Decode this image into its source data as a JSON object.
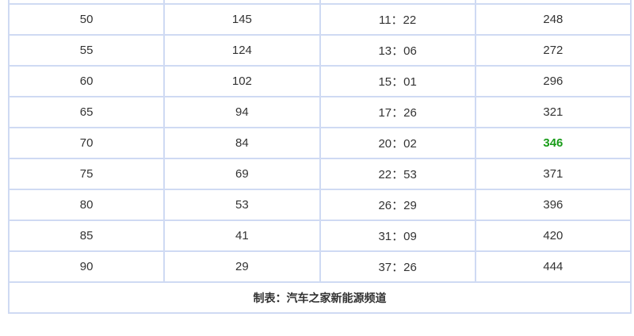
{
  "table": {
    "rows": [
      [
        "",
        "",
        "",
        ""
      ],
      [
        "50",
        "145",
        "11：22",
        "248"
      ],
      [
        "55",
        "124",
        "13：06",
        "272"
      ],
      [
        "60",
        "102",
        "15：01",
        "296"
      ],
      [
        "65",
        "94",
        "17：26",
        "321"
      ],
      [
        "70",
        "84",
        "20：02",
        "346"
      ],
      [
        "75",
        "69",
        "22：53",
        "371"
      ],
      [
        "80",
        "53",
        "26：29",
        "396"
      ],
      [
        "85",
        "41",
        "31：09",
        "420"
      ],
      [
        "90",
        "29",
        "37：26",
        "444"
      ]
    ],
    "highlight_color": "#1a9c1a",
    "footer": "制表：汽车之家新能源频道"
  }
}
